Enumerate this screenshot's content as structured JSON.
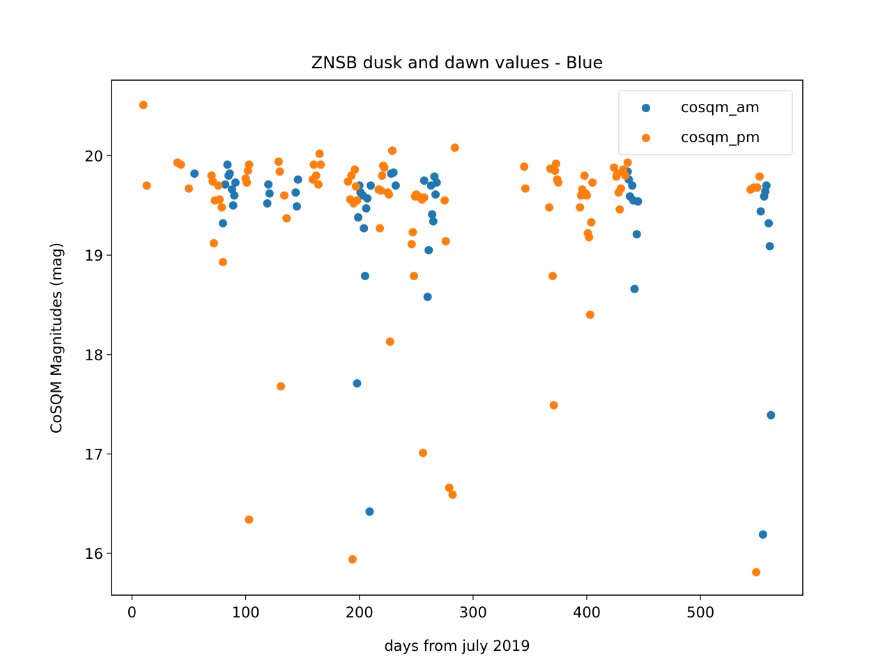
{
  "chart_data": {
    "type": "scatter",
    "title": "ZNSB dusk and dawn values - Blue",
    "xlabel": "days from july 2019",
    "ylabel": "CoSQM Magnitudes (mag)",
    "xlim": [
      -18,
      590
    ],
    "ylim": [
      15.58,
      20.76
    ],
    "xticks": [
      0,
      100,
      200,
      300,
      400,
      500
    ],
    "xtick_labels": [
      "0",
      "100",
      "200",
      "300",
      "400",
      "500"
    ],
    "yticks": [
      16,
      17,
      18,
      19,
      20
    ],
    "ytick_labels": [
      "16",
      "17",
      "18",
      "19",
      "20"
    ],
    "grid": false,
    "legend_position": "top-right",
    "series": [
      {
        "name": "cosqm_am",
        "color": "#1f77b4",
        "points": [
          [
            55,
            19.82
          ],
          [
            80,
            19.32
          ],
          [
            82,
            19.71
          ],
          [
            84,
            19.91
          ],
          [
            85,
            19.8
          ],
          [
            86,
            19.82
          ],
          [
            88,
            19.66
          ],
          [
            89,
            19.5
          ],
          [
            90,
            19.6
          ],
          [
            91,
            19.73
          ],
          [
            119,
            19.52
          ],
          [
            120,
            19.71
          ],
          [
            121,
            19.62
          ],
          [
            144,
            19.63
          ],
          [
            145,
            19.49
          ],
          [
            146,
            19.76
          ],
          [
            198,
            17.71
          ],
          [
            199,
            19.38
          ],
          [
            200,
            19.7
          ],
          [
            201,
            19.63
          ],
          [
            203,
            19.6
          ],
          [
            204,
            19.27
          ],
          [
            205,
            18.79
          ],
          [
            206,
            19.47
          ],
          [
            207,
            19.57
          ],
          [
            209,
            16.42
          ],
          [
            210,
            19.7
          ],
          [
            228,
            19.82
          ],
          [
            229,
            20.05
          ],
          [
            230,
            19.83
          ],
          [
            232,
            19.7
          ],
          [
            257,
            19.75
          ],
          [
            260,
            18.58
          ],
          [
            261,
            19.05
          ],
          [
            263,
            19.7
          ],
          [
            264,
            19.41
          ],
          [
            265,
            19.34
          ],
          [
            266,
            19.79
          ],
          [
            267,
            19.61
          ],
          [
            268,
            19.73
          ],
          [
            436,
            19.84
          ],
          [
            437,
            19.76
          ],
          [
            438,
            19.59
          ],
          [
            440,
            19.7
          ],
          [
            441,
            19.55
          ],
          [
            442,
            18.66
          ],
          [
            444,
            19.21
          ],
          [
            445,
            19.54
          ],
          [
            553,
            19.44
          ],
          [
            555,
            16.19
          ],
          [
            556,
            19.59
          ],
          [
            557,
            19.64
          ],
          [
            558,
            19.7
          ],
          [
            560,
            19.32
          ],
          [
            561,
            19.09
          ],
          [
            562,
            17.39
          ]
        ]
      },
      {
        "name": "cosqm_pm",
        "color": "#ff7f0e",
        "points": [
          [
            10,
            20.51
          ],
          [
            13,
            19.7
          ],
          [
            40,
            19.93
          ],
          [
            43,
            19.91
          ],
          [
            50,
            19.67
          ],
          [
            70,
            19.8
          ],
          [
            71,
            19.74
          ],
          [
            72,
            19.12
          ],
          [
            73,
            19.55
          ],
          [
            76,
            19.7
          ],
          [
            77,
            19.56
          ],
          [
            79,
            19.48
          ],
          [
            80,
            18.93
          ],
          [
            100,
            19.77
          ],
          [
            101,
            19.73
          ],
          [
            102,
            19.85
          ],
          [
            103,
            19.91
          ],
          [
            103,
            16.34
          ],
          [
            129,
            19.94
          ],
          [
            130,
            19.84
          ],
          [
            131,
            17.68
          ],
          [
            134,
            19.6
          ],
          [
            136,
            19.37
          ],
          [
            159,
            19.76
          ],
          [
            160,
            19.91
          ],
          [
            162,
            19.8
          ],
          [
            164,
            19.71
          ],
          [
            165,
            20.02
          ],
          [
            166,
            19.91
          ],
          [
            190,
            19.74
          ],
          [
            192,
            19.56
          ],
          [
            193,
            19.8
          ],
          [
            194,
            15.94
          ],
          [
            195,
            19.52
          ],
          [
            196,
            19.86
          ],
          [
            197,
            19.69
          ],
          [
            198,
            19.55
          ],
          [
            217,
            19.66
          ],
          [
            218,
            19.27
          ],
          [
            219,
            19.65
          ],
          [
            220,
            19.8
          ],
          [
            221,
            19.9
          ],
          [
            222,
            19.88
          ],
          [
            225,
            19.63
          ],
          [
            226,
            19.61
          ],
          [
            227,
            18.13
          ],
          [
            229,
            20.05
          ],
          [
            246,
            19.11
          ],
          [
            247,
            19.23
          ],
          [
            248,
            18.79
          ],
          [
            249,
            19.59
          ],
          [
            250,
            19.61
          ],
          [
            252,
            19.59
          ],
          [
            254,
            19.58
          ],
          [
            255,
            19.56
          ],
          [
            256,
            17.01
          ],
          [
            257,
            19.58
          ],
          [
            275,
            19.55
          ],
          [
            276,
            19.14
          ],
          [
            279,
            16.66
          ],
          [
            282,
            16.59
          ],
          [
            284,
            20.08
          ],
          [
            345,
            19.89
          ],
          [
            346,
            19.67
          ],
          [
            367,
            19.48
          ],
          [
            368,
            19.87
          ],
          [
            370,
            18.79
          ],
          [
            371,
            17.49
          ],
          [
            372,
            19.85
          ],
          [
            373,
            19.92
          ],
          [
            374,
            19.76
          ],
          [
            375,
            19.73
          ],
          [
            394,
            19.48
          ],
          [
            395,
            19.6
          ],
          [
            396,
            19.66
          ],
          [
            397,
            19.62
          ],
          [
            398,
            19.8
          ],
          [
            399,
            19.62
          ],
          [
            400,
            19.6
          ],
          [
            401,
            19.22
          ],
          [
            402,
            19.18
          ],
          [
            403,
            18.4
          ],
          [
            404,
            19.33
          ],
          [
            405,
            19.73
          ],
          [
            424,
            19.88
          ],
          [
            426,
            19.79
          ],
          [
            427,
            19.82
          ],
          [
            428,
            19.63
          ],
          [
            429,
            19.46
          ],
          [
            430,
            19.67
          ],
          [
            432,
            19.86
          ],
          [
            434,
            19.8
          ],
          [
            436,
            19.93
          ],
          [
            544,
            19.66
          ],
          [
            547,
            19.68
          ],
          [
            549,
            15.81
          ],
          [
            550,
            19.68
          ],
          [
            552,
            19.79
          ]
        ]
      }
    ]
  }
}
